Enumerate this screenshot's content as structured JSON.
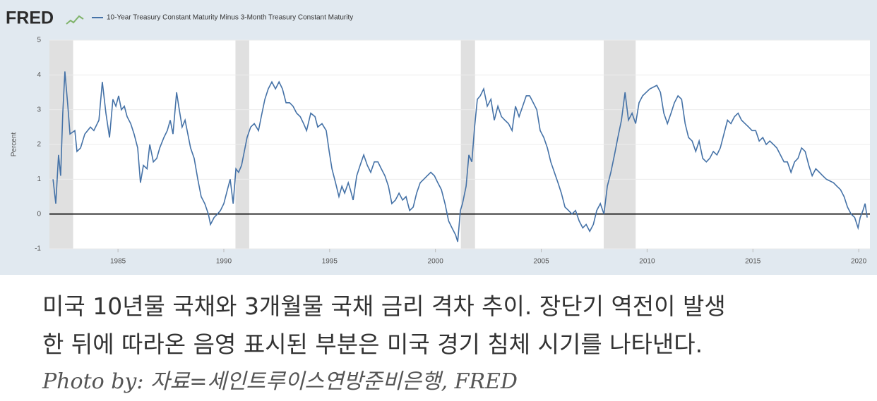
{
  "logo": "FRED",
  "chart_data": {
    "type": "line",
    "y_label": "Percent",
    "x": [
      1981.93,
      1982.06,
      1982.19,
      1982.29,
      1982.39,
      1982.49,
      1982.63,
      1982.73,
      1982.96,
      1983.06,
      1983.23,
      1983.43,
      1983.7,
      1983.86,
      1984.1,
      1984.26,
      1984.43,
      1984.6,
      1984.76,
      1984.9,
      1985.03,
      1985.16,
      1985.3,
      1985.43,
      1985.6,
      1985.76,
      1985.93,
      1986.06,
      1986.2,
      1986.37,
      1986.5,
      1986.67,
      1986.83,
      1986.97,
      1987.17,
      1987.33,
      1987.47,
      1987.6,
      1987.77,
      1987.87,
      1988.03,
      1988.17,
      1988.3,
      1988.43,
      1988.6,
      1988.77,
      1988.93,
      1989.1,
      1989.27,
      1989.37,
      1989.54,
      1989.7,
      1989.84,
      1990.0,
      1990.17,
      1990.3,
      1990.44,
      1990.57,
      1990.7,
      1990.84,
      1990.97,
      1991.1,
      1991.27,
      1991.44,
      1991.64,
      1991.77,
      1991.94,
      1992.1,
      1992.27,
      1992.44,
      1992.61,
      1992.77,
      1992.94,
      1993.11,
      1993.27,
      1993.44,
      1993.61,
      1993.77,
      1993.91,
      1994.11,
      1994.31,
      1994.44,
      1994.64,
      1994.84,
      1994.98,
      1995.11,
      1995.28,
      1995.44,
      1995.58,
      1995.71,
      1995.88,
      1995.98,
      1996.11,
      1996.28,
      1996.44,
      1996.61,
      1996.78,
      1996.94,
      1997.11,
      1997.28,
      1997.44,
      1997.61,
      1997.78,
      1997.94,
      1998.11,
      1998.28,
      1998.45,
      1998.61,
      1998.78,
      1998.95,
      1999.11,
      1999.28,
      1999.45,
      1999.61,
      1999.78,
      1999.95,
      2000.11,
      2000.28,
      2000.45,
      2000.62,
      2000.78,
      2000.95,
      2001.05,
      2001.18,
      2001.28,
      2001.45,
      2001.58,
      2001.72,
      2001.85,
      2001.98,
      2002.12,
      2002.28,
      2002.45,
      2002.62,
      2002.78,
      2002.95,
      2003.12,
      2003.28,
      2003.45,
      2003.62,
      2003.78,
      2003.95,
      2004.12,
      2004.29,
      2004.45,
      2004.62,
      2004.79,
      2004.95,
      2005.12,
      2005.29,
      2005.45,
      2005.62,
      2005.79,
      2005.95,
      2006.12,
      2006.29,
      2006.45,
      2006.62,
      2006.79,
      2006.96,
      2007.12,
      2007.29,
      2007.46,
      2007.62,
      2007.79,
      2007.96,
      2008.12,
      2008.29,
      2008.46,
      2008.62,
      2008.79,
      2008.96,
      2009.12,
      2009.29,
      2009.46,
      2009.62,
      2009.79,
      2010.13,
      2010.46,
      2010.63,
      2010.79,
      2010.96,
      2011.13,
      2011.29,
      2011.46,
      2011.63,
      2011.8,
      2011.96,
      2012.13,
      2012.3,
      2012.46,
      2012.63,
      2012.8,
      2012.96,
      2013.13,
      2013.3,
      2013.46,
      2013.63,
      2013.8,
      2013.96,
      2014.13,
      2014.3,
      2014.46,
      2014.63,
      2014.8,
      2014.96,
      2015.13,
      2015.3,
      2015.47,
      2015.63,
      2015.8,
      2015.97,
      2016.13,
      2016.3,
      2016.47,
      2016.63,
      2016.8,
      2016.97,
      2017.13,
      2017.3,
      2017.47,
      2017.64,
      2017.8,
      2017.97,
      2018.14,
      2018.3,
      2018.47,
      2018.81,
      2018.97,
      2019.14,
      2019.31,
      2019.47,
      2019.64,
      2019.81,
      2019.97,
      2020.07,
      2020.2,
      2020.3,
      2020.4
    ],
    "series": [
      {
        "name": "10-Year Treasury Constant Maturity Minus 3-Month Treasury Constant Maturity",
        "color": "#4572a7",
        "values": [
          1.0,
          0.3,
          1.7,
          1.1,
          2.9,
          4.1,
          3.1,
          2.3,
          2.4,
          1.8,
          1.9,
          2.3,
          2.5,
          2.4,
          2.7,
          3.8,
          2.9,
          2.2,
          3.3,
          3.1,
          3.4,
          3.0,
          3.1,
          2.8,
          2.6,
          2.3,
          1.9,
          0.9,
          1.4,
          1.3,
          2.0,
          1.5,
          1.6,
          1.9,
          2.2,
          2.4,
          2.7,
          2.3,
          3.5,
          3.1,
          2.5,
          2.7,
          2.3,
          1.9,
          1.6,
          1.0,
          0.5,
          0.3,
          0.0,
          -0.3,
          -0.1,
          0.0,
          0.1,
          0.3,
          0.7,
          1.0,
          0.3,
          1.3,
          1.2,
          1.4,
          1.8,
          2.2,
          2.5,
          2.6,
          2.4,
          2.8,
          3.3,
          3.6,
          3.8,
          3.6,
          3.8,
          3.6,
          3.2,
          3.2,
          3.1,
          2.9,
          2.8,
          2.6,
          2.4,
          2.9,
          2.8,
          2.5,
          2.6,
          2.4,
          1.8,
          1.3,
          0.9,
          0.5,
          0.8,
          0.6,
          0.9,
          0.7,
          0.4,
          1.1,
          1.4,
          1.7,
          1.4,
          1.2,
          1.5,
          1.5,
          1.3,
          1.1,
          0.8,
          0.3,
          0.4,
          0.6,
          0.4,
          0.5,
          0.1,
          0.2,
          0.6,
          0.9,
          1.0,
          1.1,
          1.2,
          1.1,
          0.9,
          0.7,
          0.3,
          -0.2,
          -0.4,
          -0.6,
          -0.8,
          0.1,
          0.3,
          0.8,
          1.7,
          1.5,
          2.5,
          3.3,
          3.4,
          3.6,
          3.1,
          3.3,
          2.7,
          3.1,
          2.8,
          2.7,
          2.6,
          2.4,
          3.1,
          2.8,
          3.1,
          3.4,
          3.4,
          3.2,
          3.0,
          2.4,
          2.2,
          1.9,
          1.5,
          1.2,
          0.9,
          0.6,
          0.2,
          0.1,
          0.0,
          0.1,
          -0.2,
          -0.4,
          -0.3,
          -0.5,
          -0.3,
          0.1,
          0.3,
          0.0,
          0.8,
          1.2,
          1.7,
          2.2,
          2.7,
          3.5,
          2.7,
          2.9,
          2.6,
          3.2,
          3.4,
          3.6,
          3.7,
          3.5,
          2.9,
          2.6,
          2.9,
          3.2,
          3.4,
          3.3,
          2.6,
          2.2,
          2.1,
          1.8,
          2.1,
          1.6,
          1.5,
          1.6,
          1.8,
          1.7,
          1.9,
          2.3,
          2.7,
          2.6,
          2.8,
          2.9,
          2.7,
          2.6,
          2.5,
          2.4,
          2.4,
          2.1,
          2.2,
          2.0,
          2.1,
          2.0,
          1.9,
          1.7,
          1.5,
          1.5,
          1.2,
          1.5,
          1.6,
          1.9,
          1.8,
          1.4,
          1.1,
          1.3,
          1.2,
          1.1,
          1.0,
          0.9,
          0.8,
          0.7,
          0.5,
          0.2,
          0.0,
          -0.1,
          -0.4,
          -0.1,
          0.1,
          0.3,
          -0.1
        ]
      }
    ],
    "shaded_periods": [
      [
        1981.76,
        1982.88
      ],
      [
        1990.55,
        1991.2
      ],
      [
        2001.2,
        2001.87
      ],
      [
        2007.95,
        2009.46
      ]
    ],
    "reference_line": 0,
    "xlim": [
      1981.76,
      2020.53
    ],
    "xticks": [
      1985,
      1990,
      1995,
      2000,
      2005,
      2010,
      2015,
      2020
    ],
    "ylim": [
      -1,
      5
    ],
    "yticks": [
      -1,
      0,
      1,
      2,
      3,
      4,
      5
    ],
    "grid": true
  },
  "caption": {
    "lines": [
      "미국 10년물 국채와 3개월물 국채 금리 격차 추이. 장단기 역전이 발생",
      "한 뒤에 따라온 음영 표시된 부분은 미국 경기 침체 시기를 나타낸다."
    ],
    "credit": "Photo by: 자료=세인트루이스연방준비은행, FRED"
  }
}
